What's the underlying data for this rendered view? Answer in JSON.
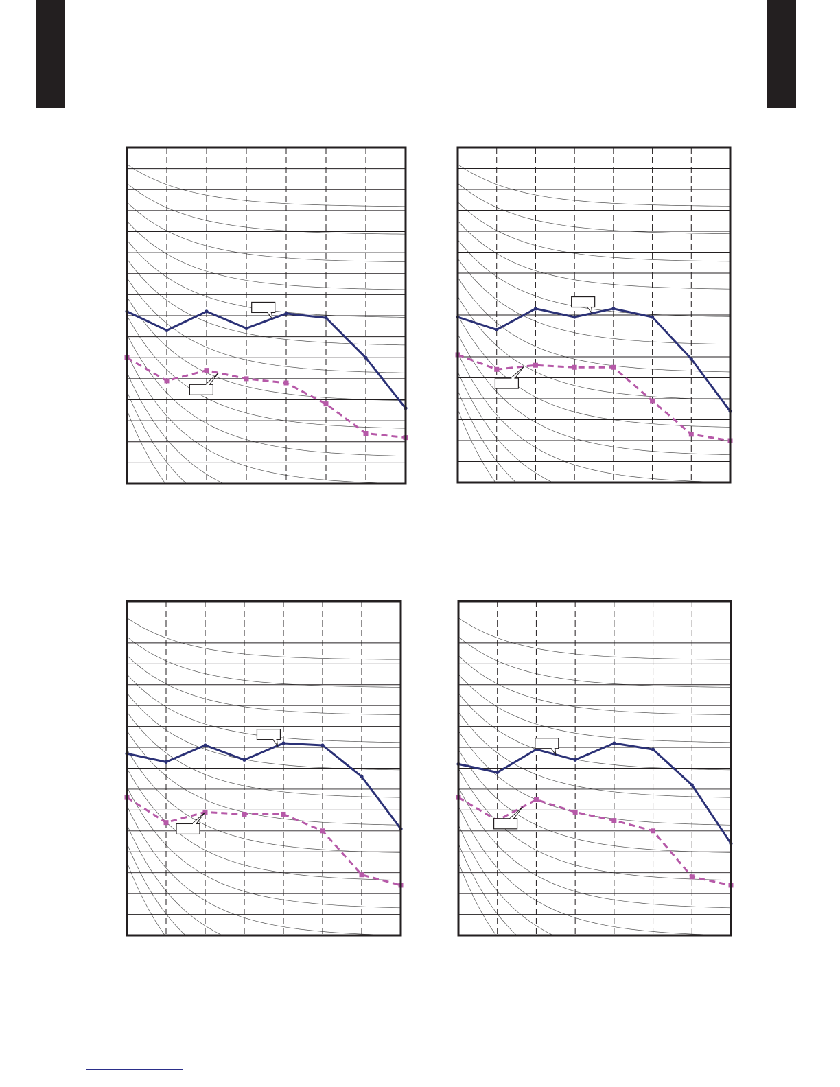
{
  "colors": {
    "tab": "#231f20",
    "frame": "#231f20",
    "grid": "#231f20",
    "nc_curve": "#555555",
    "series_solid": "#2b3176",
    "series_dashed": "#b659a8",
    "footer_rule": "#2b2f8a"
  },
  "chart_data": [
    {
      "type": "line",
      "title": "",
      "xlabel": "",
      "ylabel": "",
      "x_bands": 7,
      "y_bands": 16,
      "xlim": [
        0,
        7
      ],
      "ylim": [
        0,
        16
      ],
      "grid": {
        "vertical": "dashed",
        "horizontal": "solid"
      },
      "background_curves": 14,
      "series": [
        {
          "style": "solid",
          "x": [
            0,
            1,
            2,
            3,
            4,
            5,
            6,
            7
          ],
          "y": [
            8.2,
            7.3,
            8.2,
            7.4,
            8.1,
            7.9,
            6.0,
            3.6
          ]
        },
        {
          "style": "dashed",
          "x": [
            0,
            1,
            2,
            3,
            4,
            5,
            6,
            7
          ],
          "y": [
            6.0,
            4.9,
            5.4,
            5.0,
            4.8,
            3.8,
            2.4,
            2.2
          ]
        }
      ],
      "callouts": [
        {
          "target_series": 0,
          "target_x": 3.65,
          "text": ""
        },
        {
          "target_series": 1,
          "target_x": 2.3,
          "text": ""
        }
      ]
    },
    {
      "type": "line",
      "title": "",
      "xlabel": "",
      "ylabel": "",
      "x_bands": 7,
      "y_bands": 16,
      "xlim": [
        0,
        7
      ],
      "ylim": [
        0,
        16
      ],
      "grid": {
        "vertical": "dashed",
        "horizontal": "solid"
      },
      "background_curves": 14,
      "series": [
        {
          "style": "solid",
          "x": [
            0,
            1,
            2,
            3,
            4,
            5,
            6,
            7
          ],
          "y": [
            7.9,
            7.3,
            8.3,
            7.9,
            8.3,
            7.9,
            5.9,
            3.4
          ]
        },
        {
          "style": "dashed",
          "x": [
            0,
            1,
            2,
            3,
            4,
            5,
            6,
            7
          ],
          "y": [
            6.1,
            5.4,
            5.6,
            5.5,
            5.5,
            3.9,
            2.3,
            2.0
          ]
        }
      ],
      "callouts": [
        {
          "target_series": 0,
          "target_x": 3.45,
          "text": ""
        },
        {
          "target_series": 1,
          "target_x": 1.7,
          "text": ""
        }
      ]
    },
    {
      "type": "line",
      "title": "",
      "xlabel": "",
      "ylabel": "",
      "x_bands": 7,
      "y_bands": 16,
      "xlim": [
        0,
        7
      ],
      "ylim": [
        0,
        16
      ],
      "grid": {
        "vertical": "dashed",
        "horizontal": "solid"
      },
      "background_curves": 14,
      "series": [
        {
          "style": "solid",
          "x": [
            0,
            1,
            2,
            3,
            4,
            5,
            6,
            7
          ],
          "y": [
            8.7,
            8.3,
            9.1,
            8.4,
            9.2,
            9.1,
            7.6,
            5.1
          ]
        },
        {
          "style": "dashed",
          "x": [
            0,
            1,
            2,
            3,
            4,
            5,
            6,
            7
          ],
          "y": [
            6.6,
            5.4,
            5.9,
            5.8,
            5.8,
            5.0,
            2.9,
            2.4
          ]
        }
      ],
      "callouts": [
        {
          "target_series": 0,
          "target_x": 3.85,
          "text": ""
        },
        {
          "target_series": 1,
          "target_x": 2.0,
          "text": ""
        }
      ]
    },
    {
      "type": "line",
      "title": "",
      "xlabel": "",
      "ylabel": "",
      "x_bands": 7,
      "y_bands": 16,
      "xlim": [
        0,
        7
      ],
      "ylim": [
        0,
        16
      ],
      "grid": {
        "vertical": "dashed",
        "horizontal": "solid"
      },
      "background_curves": 14,
      "series": [
        {
          "style": "solid",
          "x": [
            0,
            1,
            2,
            3,
            4,
            5,
            6,
            7
          ],
          "y": [
            8.2,
            7.8,
            8.9,
            8.4,
            9.2,
            8.9,
            7.2,
            4.4
          ]
        },
        {
          "style": "dashed",
          "x": [
            0,
            1,
            2,
            3,
            4,
            5,
            6,
            7
          ],
          "y": [
            6.6,
            5.5,
            6.5,
            5.9,
            5.5,
            5.0,
            2.8,
            2.4
          ]
        }
      ],
      "callouts": [
        {
          "target_series": 0,
          "target_x": 2.5,
          "text": ""
        },
        {
          "target_series": 1,
          "target_x": 1.65,
          "text": ""
        }
      ]
    }
  ]
}
